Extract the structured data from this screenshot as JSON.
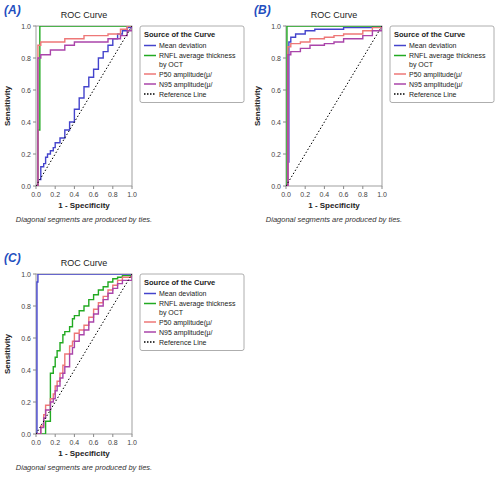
{
  "chart_data": [
    {
      "type": "step",
      "panel_label": "(A)",
      "title": "ROC Curve",
      "x_label": "1 - Specificity",
      "y_label": "Sensitivity",
      "footnote": "Diagonal segments are produced by ties.",
      "legend_title": "Source of the Curve",
      "legend": "right",
      "grid": false,
      "xlim": [
        0,
        1.0
      ],
      "ylim": [
        0,
        1.0
      ],
      "xticks": [
        {
          "value": 0.0,
          "label": "0.0"
        },
        0.2,
        0.4,
        0.6,
        0.8,
        {
          "value": 1.0,
          "label": "1.0"
        }
      ],
      "yticks": [
        {
          "value": 0.0,
          "label": "0.0"
        },
        0.2,
        0.4,
        0.6,
        0.8,
        {
          "value": 1.0,
          "label": "1.0"
        }
      ],
      "series": [
        {
          "name": "Mean deviation",
          "color": "#4444cc",
          "line_style": "solid",
          "x": [
            0,
            0.02,
            0.05,
            0.08,
            0.1,
            0.12,
            0.15,
            0.18,
            0.2,
            0.25,
            0.3,
            0.35,
            0.4,
            0.45,
            0.5,
            0.55,
            0.6,
            0.65,
            0.7,
            0.75,
            0.8,
            0.85,
            0.9,
            0.95,
            1.0
          ],
          "values": [
            0,
            0.04,
            0.12,
            0.14,
            0.18,
            0.2,
            0.22,
            0.24,
            0.27,
            0.3,
            0.35,
            0.4,
            0.48,
            0.55,
            0.62,
            0.68,
            0.73,
            0.8,
            0.84,
            0.88,
            0.92,
            0.95,
            0.97,
            0.99,
            1.0
          ]
        },
        {
          "name": "RNFL average thickness\nby OCT",
          "color": "#22aa22",
          "line_style": "solid",
          "x": [
            0,
            0.02,
            0.04,
            1.0
          ],
          "values": [
            0,
            0.35,
            1.0,
            1.0
          ]
        },
        {
          "name": "P50 amplitude(μ/",
          "color": "#ee7777",
          "line_style": "solid",
          "x": [
            0,
            0.02,
            0.05,
            0.3,
            0.5,
            0.75,
            0.88,
            0.95,
            1.0
          ],
          "values": [
            0,
            0.88,
            0.9,
            0.92,
            0.94,
            0.95,
            0.98,
            1.0,
            1.0
          ]
        },
        {
          "name": "N95 amplitude(μ/",
          "color": "#aa44aa",
          "line_style": "solid",
          "x": [
            0,
            0.02,
            0.05,
            0.15,
            0.3,
            0.4,
            0.5,
            0.75,
            0.88,
            0.95,
            1.0
          ],
          "values": [
            0,
            0.8,
            0.82,
            0.85,
            0.88,
            0.9,
            0.9,
            0.92,
            0.94,
            0.97,
            1.0
          ]
        },
        {
          "name": "Reference Line",
          "color": "#000000",
          "type": "line",
          "line_style": "dotted",
          "x": [
            0,
            1
          ],
          "values": [
            0,
            1
          ]
        }
      ]
    },
    {
      "type": "step",
      "panel_label": "(B)",
      "title": "ROC Curve",
      "x_label": "1 - Specificity",
      "y_label": "Sensitivity",
      "footnote": "Diagonal segments are produced by ties.",
      "legend_title": "Source of the Curve",
      "legend": "right",
      "grid": false,
      "xlim": [
        0,
        1.0
      ],
      "ylim": [
        0,
        1.0
      ],
      "xticks": [
        {
          "value": 0.0,
          "label": "0.0"
        },
        0.2,
        0.4,
        0.6,
        0.8,
        {
          "value": 1.0,
          "label": "1.0"
        }
      ],
      "yticks": [
        {
          "value": 0.0,
          "label": "0.0"
        },
        0.2,
        0.4,
        0.6,
        0.8,
        {
          "value": 1.0,
          "label": "1.0"
        }
      ],
      "series": [
        {
          "name": "Mean deviation",
          "color": "#4444cc",
          "line_style": "solid",
          "x": [
            0,
            0.02,
            0.03,
            0.05,
            0.1,
            0.2,
            0.3,
            0.4,
            0.6,
            0.8,
            0.9,
            1.0
          ],
          "values": [
            0,
            0.15,
            0.9,
            0.93,
            0.95,
            0.97,
            0.98,
            0.98,
            0.99,
            0.99,
            1.0,
            1.0
          ]
        },
        {
          "name": "RNFL average thickness\nby OCT",
          "color": "#22aa22",
          "line_style": "solid",
          "x": [
            0,
            0.01,
            1.0
          ],
          "values": [
            0,
            1.0,
            1.0
          ]
        },
        {
          "name": "P50 amplitude(μ/",
          "color": "#ee7777",
          "line_style": "solid",
          "x": [
            0,
            0.02,
            0.05,
            0.15,
            0.25,
            0.4,
            0.5,
            0.6,
            0.8,
            0.9,
            1.0
          ],
          "values": [
            0,
            0.87,
            0.89,
            0.9,
            0.92,
            0.93,
            0.94,
            0.95,
            0.97,
            0.99,
            1.0
          ]
        },
        {
          "name": "N95 amplitude(μ/",
          "color": "#aa44aa",
          "line_style": "solid",
          "x": [
            0,
            0.02,
            0.05,
            0.15,
            0.25,
            0.4,
            0.5,
            0.6,
            0.8,
            0.9,
            1.0
          ],
          "values": [
            0,
            0.82,
            0.84,
            0.86,
            0.88,
            0.89,
            0.9,
            0.92,
            0.94,
            0.97,
            1.0
          ]
        },
        {
          "name": "Reference Line",
          "color": "#000000",
          "type": "line",
          "line_style": "dotted",
          "x": [
            0,
            1
          ],
          "values": [
            0,
            1
          ]
        }
      ]
    },
    {
      "type": "step",
      "panel_label": "(C)",
      "title": "ROC Curve",
      "x_label": "1 - Specificity",
      "y_label": "Sensitivity",
      "footnote": "Diagonal segments are produced by ties.",
      "legend_title": "Source of the Curve",
      "legend": "right",
      "grid": false,
      "xlim": [
        0,
        1.0
      ],
      "ylim": [
        0,
        1.0
      ],
      "xticks": [
        {
          "value": 0.0,
          "label": "0.0"
        },
        0.2,
        0.4,
        0.6,
        0.8,
        {
          "value": 1.0,
          "label": "1.0"
        }
      ],
      "yticks": [
        {
          "value": 0.0,
          "label": "0.0"
        },
        0.2,
        0.4,
        0.6,
        0.8,
        {
          "value": 1.0,
          "label": "1.0"
        }
      ],
      "series": [
        {
          "name": "Mean deviation",
          "color": "#4444cc",
          "line_style": "solid",
          "x": [
            0,
            0.01,
            0.02,
            1.0
          ],
          "values": [
            0,
            0.95,
            1.0,
            1.0
          ]
        },
        {
          "name": "RNFL average thickness\nby OCT",
          "color": "#22aa22",
          "line_style": "solid",
          "x": [
            0,
            0.1,
            0.15,
            0.18,
            0.2,
            0.22,
            0.25,
            0.28,
            0.3,
            0.35,
            0.38,
            0.4,
            0.45,
            0.5,
            0.55,
            0.6,
            0.65,
            0.7,
            0.75,
            0.8,
            0.85,
            0.9,
            1.0
          ],
          "values": [
            0,
            0.08,
            0.38,
            0.42,
            0.48,
            0.52,
            0.57,
            0.62,
            0.64,
            0.67,
            0.72,
            0.74,
            0.77,
            0.8,
            0.84,
            0.87,
            0.9,
            0.92,
            0.95,
            0.97,
            0.98,
            0.99,
            1.0
          ]
        },
        {
          "name": "P50 amplitude(μ/",
          "color": "#ee7777",
          "line_style": "solid",
          "x": [
            0,
            0.05,
            0.08,
            0.1,
            0.15,
            0.18,
            0.2,
            0.22,
            0.25,
            0.28,
            0.3,
            0.35,
            0.38,
            0.4,
            0.45,
            0.5,
            0.55,
            0.6,
            0.65,
            0.7,
            0.75,
            0.8,
            0.85,
            0.9,
            1.0
          ],
          "values": [
            0,
            0.05,
            0.12,
            0.18,
            0.22,
            0.25,
            0.3,
            0.33,
            0.38,
            0.43,
            0.5,
            0.55,
            0.58,
            0.63,
            0.65,
            0.68,
            0.73,
            0.78,
            0.82,
            0.86,
            0.9,
            0.93,
            0.96,
            0.98,
            1.0
          ]
        },
        {
          "name": "N95 amplitude(μ/",
          "color": "#aa44aa",
          "line_style": "solid",
          "x": [
            0,
            0.05,
            0.08,
            0.1,
            0.15,
            0.18,
            0.2,
            0.22,
            0.25,
            0.28,
            0.3,
            0.35,
            0.38,
            0.4,
            0.45,
            0.5,
            0.55,
            0.6,
            0.65,
            0.7,
            0.75,
            0.8,
            0.85,
            0.9,
            1.0
          ],
          "values": [
            0,
            0.04,
            0.1,
            0.15,
            0.2,
            0.22,
            0.27,
            0.3,
            0.35,
            0.38,
            0.42,
            0.5,
            0.54,
            0.58,
            0.62,
            0.65,
            0.7,
            0.75,
            0.8,
            0.84,
            0.88,
            0.91,
            0.94,
            0.96,
            1.0
          ]
        },
        {
          "name": "Reference Line",
          "color": "#000000",
          "type": "line",
          "line_style": "dotted",
          "x": [
            0,
            1
          ],
          "values": [
            0,
            1
          ]
        }
      ]
    }
  ]
}
